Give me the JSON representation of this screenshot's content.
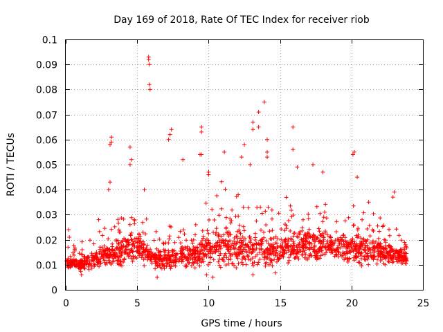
{
  "chart_data": {
    "type": "scatter",
    "title": "Day 169 of 2018, Rate Of TEC Index for receiver riob",
    "xlabel": "GPS time / hours",
    "ylabel": "ROTI / TECUs",
    "xlim": [
      0,
      25
    ],
    "ylim": [
      0,
      0.1
    ],
    "xticks": [
      "0",
      "5",
      "10",
      "15",
      "20",
      "25"
    ],
    "yticks": [
      "0",
      "0.01",
      "0.02",
      "0.03",
      "0.04",
      "0.05",
      "0.06",
      "0.07",
      "0.08",
      "0.09",
      "0.1"
    ],
    "grid": true,
    "marker": "+",
    "color": "#ff0000",
    "series": [
      {
        "name": "ROTI",
        "notable_points": [
          {
            "x": 5.8,
            "y": 0.093
          },
          {
            "x": 5.8,
            "y": 0.092
          },
          {
            "x": 5.85,
            "y": 0.09
          },
          {
            "x": 5.85,
            "y": 0.082
          },
          {
            "x": 5.9,
            "y": 0.08
          },
          {
            "x": 13.9,
            "y": 0.075
          },
          {
            "x": 13.5,
            "y": 0.071
          },
          {
            "x": 13.1,
            "y": 0.067
          },
          {
            "x": 13.1,
            "y": 0.064
          },
          {
            "x": 13.5,
            "y": 0.065
          },
          {
            "x": 15.9,
            "y": 0.065
          },
          {
            "x": 9.5,
            "y": 0.065
          },
          {
            "x": 9.5,
            "y": 0.063
          },
          {
            "x": 7.4,
            "y": 0.064
          },
          {
            "x": 7.3,
            "y": 0.062
          },
          {
            "x": 7.2,
            "y": 0.06
          },
          {
            "x": 3.2,
            "y": 0.061
          },
          {
            "x": 3.2,
            "y": 0.059
          },
          {
            "x": 3.1,
            "y": 0.058
          },
          {
            "x": 4.5,
            "y": 0.057
          },
          {
            "x": 4.6,
            "y": 0.052
          },
          {
            "x": 4.5,
            "y": 0.05
          },
          {
            "x": 14.1,
            "y": 0.06
          },
          {
            "x": 14.1,
            "y": 0.055
          },
          {
            "x": 14.1,
            "y": 0.053
          },
          {
            "x": 15.9,
            "y": 0.056
          },
          {
            "x": 12.5,
            "y": 0.058
          },
          {
            "x": 12.3,
            "y": 0.053
          },
          {
            "x": 11.1,
            "y": 0.055
          },
          {
            "x": 20.2,
            "y": 0.055
          },
          {
            "x": 20.1,
            "y": 0.054
          },
          {
            "x": 9.4,
            "y": 0.054
          },
          {
            "x": 9.5,
            "y": 0.054
          },
          {
            "x": 8.2,
            "y": 0.052
          },
          {
            "x": 12.9,
            "y": 0.05
          },
          {
            "x": 17.3,
            "y": 0.05
          },
          {
            "x": 18.0,
            "y": 0.047
          },
          {
            "x": 10.0,
            "y": 0.047
          },
          {
            "x": 10.0,
            "y": 0.046
          },
          {
            "x": 16.2,
            "y": 0.049
          },
          {
            "x": 20.4,
            "y": 0.045
          },
          {
            "x": 3.1,
            "y": 0.043
          },
          {
            "x": 3.0,
            "y": 0.04
          },
          {
            "x": 5.5,
            "y": 0.04
          },
          {
            "x": 23.0,
            "y": 0.039
          },
          {
            "x": 22.9,
            "y": 0.037
          },
          {
            "x": 21.2,
            "y": 0.035
          },
          {
            "x": 0.2,
            "y": 0.024
          },
          {
            "x": 0.25,
            "y": 0.021
          },
          {
            "x": 2.3,
            "y": 0.028
          },
          {
            "x": 6.4,
            "y": 0.005
          },
          {
            "x": 1.1,
            "y": 0.006
          },
          {
            "x": 13.1,
            "y": 0.006
          },
          {
            "x": 10.3,
            "y": 0.005
          },
          {
            "x": 4.8,
            "y": 0.028
          }
        ],
        "baseline_profile": {
          "hours": [
            0,
            1,
            2,
            3,
            4,
            5,
            6,
            7,
            8,
            9,
            10,
            11,
            12,
            13,
            14,
            15,
            16,
            17,
            18,
            19,
            20,
            21,
            22,
            23,
            24
          ],
          "typical_roti": [
            0.011,
            0.01,
            0.012,
            0.014,
            0.016,
            0.017,
            0.013,
            0.012,
            0.013,
            0.015,
            0.016,
            0.017,
            0.017,
            0.016,
            0.016,
            0.015,
            0.017,
            0.018,
            0.018,
            0.017,
            0.016,
            0.016,
            0.015,
            0.014,
            0.013
          ],
          "spread": [
            0.003,
            0.003,
            0.004,
            0.006,
            0.008,
            0.008,
            0.005,
            0.005,
            0.006,
            0.008,
            0.009,
            0.01,
            0.01,
            0.009,
            0.008,
            0.008,
            0.009,
            0.009,
            0.008,
            0.008,
            0.007,
            0.007,
            0.006,
            0.005,
            0.004
          ]
        },
        "baseline_point_count": 1800
      }
    ]
  }
}
